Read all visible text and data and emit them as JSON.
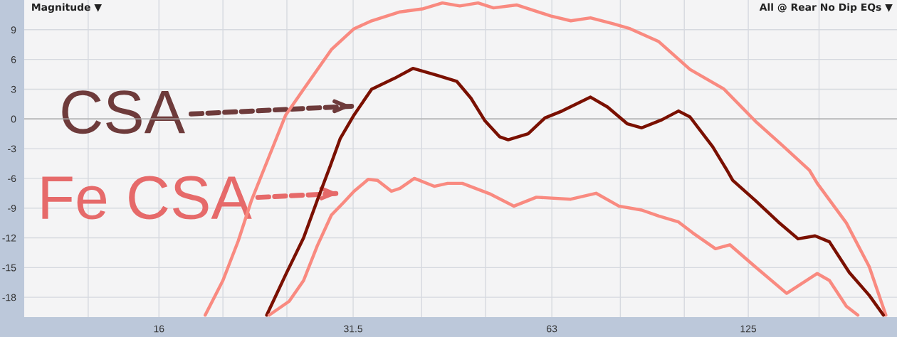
{
  "chart_data": {
    "type": "line",
    "annotations": [
      "Magnitude ▼",
      "All @ Rear No Dip EQs ▼"
    ],
    "log": "x",
    "grid": true,
    "legend": false,
    "marker": "none",
    "line_style": "solid",
    "xlim": [
      10,
      210
    ],
    "ylim": [
      -20,
      12
    ],
    "xticks": [
      {
        "value": 12.5,
        "label": null
      },
      16,
      {
        "value": 20,
        "label": null
      },
      {
        "value": 25,
        "label": null
      },
      31.5,
      {
        "value": 40,
        "label": null
      },
      {
        "value": 50,
        "label": null
      },
      63,
      {
        "value": 80,
        "label": null
      },
      {
        "value": 100,
        "label": null
      },
      125,
      {
        "value": 160,
        "label": null
      }
    ],
    "yticks": [
      -18,
      -15,
      -12,
      -9,
      -6,
      -3,
      0,
      3,
      6,
      9
    ],
    "ref_lines": [
      {
        "axis": "y",
        "value": 0,
        "color": "#a9a9a9"
      }
    ],
    "series": [
      {
        "color": "#f98a80",
        "x": [
          18.8,
          20.0,
          21.1,
          22.1,
          23.2,
          24.9,
          26.5,
          29.2,
          31.6,
          33.6,
          37.1,
          40.1,
          43.0,
          45.7,
          48.7,
          51.4,
          55.7,
          62.7,
          67.3,
          72.1,
          78.0,
          82.8,
          91.5,
          102,
          114.9,
          128,
          141.5,
          154.8,
          159,
          176,
          190.6,
          202
        ],
        "values": [
          -19.8,
          -16.3,
          -12.3,
          -8.2,
          -4.7,
          0.4,
          3.0,
          7.0,
          9.1,
          9.9,
          10.8,
          11.1,
          11.7,
          11.4,
          11.7,
          11.2,
          11.5,
          10.4,
          9.9,
          10.2,
          9.6,
          9.1,
          7.8,
          5.0,
          3.0,
          -0.2,
          -2.8,
          -5.2,
          -6.5,
          -10.5,
          -14.9,
          -19.8
        ]
      },
      {
        "name": "CSA",
        "color": "#7a1000",
        "x": [
          23.3,
          24.9,
          26.5,
          27.8,
          29.1,
          30.1,
          31.6,
          33.6,
          36.4,
          38.8,
          42.2,
          45.2,
          47.5,
          49.9,
          52.5,
          54.1,
          58.0,
          61.5,
          65.3,
          72.1,
          76.5,
          82.0,
          86.2,
          92.4,
          98.0,
          102,
          110.4,
          116.1,
          118.4,
          128,
          138.8,
          148.7,
          157.8,
          165.9,
          177.8,
          190.6,
          200.3
        ],
        "values": [
          -19.8,
          -15.7,
          -12.0,
          -8.2,
          -4.7,
          -2.0,
          0.4,
          3.0,
          4.1,
          5.1,
          4.4,
          3.8,
          2.1,
          -0.2,
          -1.8,
          -2.1,
          -1.5,
          0.1,
          0.8,
          2.2,
          1.2,
          -0.5,
          -0.9,
          -0.1,
          0.8,
          0.2,
          -2.8,
          -5.2,
          -6.2,
          -8.2,
          -10.4,
          -12.1,
          -11.8,
          -12.4,
          -15.5,
          -17.8,
          -19.8
        ]
      },
      {
        "name": "Fe CSA",
        "color": "#f98a80",
        "x": [
          23.5,
          25.2,
          26.5,
          27.8,
          29.2,
          30.4,
          31.6,
          33.2,
          34.3,
          36.0,
          37.1,
          39.0,
          41.8,
          43.8,
          46.1,
          50.9,
          55.2,
          59.7,
          67.3,
          73.5,
          79.6,
          86.2,
          91.5,
          98.0,
          103,
          111.5,
          117.2,
          128,
          142.9,
          159,
          165.9,
          176,
          183.2
        ],
        "values": [
          -19.8,
          -18.4,
          -16.3,
          -12.8,
          -9.7,
          -8.5,
          -7.3,
          -6.1,
          -6.2,
          -7.3,
          -7.0,
          -6.0,
          -6.8,
          -6.5,
          -6.5,
          -7.6,
          -8.8,
          -7.9,
          -8.1,
          -7.5,
          -8.8,
          -9.2,
          -9.8,
          -10.4,
          -11.5,
          -13.1,
          -12.7,
          -14.9,
          -17.6,
          -15.6,
          -16.3,
          -18.9,
          -19.8
        ]
      }
    ]
  }
}
